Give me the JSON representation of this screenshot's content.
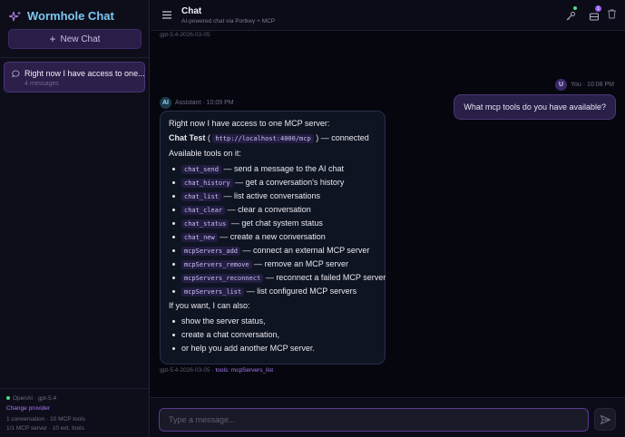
{
  "app": {
    "title": "Wormhole Chat",
    "new_chat": "New Chat"
  },
  "sidebar": {
    "conversations": [
      {
        "title": "Right now I have access to one...",
        "sub": "4 messages"
      }
    ],
    "footer": {
      "provider": "OpenAI · gpt-5.4",
      "change": "Change provider",
      "stats1": "1 conversation · 10 MCP tools",
      "stats2": "1/1 MCP server · 10 ext. tools"
    }
  },
  "header": {
    "title": "Chat",
    "subtitle": "AI-powered chat via Portkey + MCP",
    "badge_count": "1"
  },
  "messages": {
    "top_meta": "gpt-5.4-2026-03-05",
    "user": {
      "avatar": "U",
      "meta": "You · 10:08 PM",
      "text": "What mcp tools do you have available?"
    },
    "assistant": {
      "avatar": "AI",
      "meta": "Assistant · 10:09 PM",
      "intro": "Right now I have access to one MCP server:",
      "server_name": "Chat Test",
      "server_url": "http://localhost:4000/mcp",
      "server_status": ") — connected",
      "tools_heading": "Available tools on it:",
      "tools": [
        {
          "name": "chat_send",
          "desc": "— send a message to the AI chat"
        },
        {
          "name": "chat_history",
          "desc": "— get a conversation's history"
        },
        {
          "name": "chat_list",
          "desc": "— list active conversations"
        },
        {
          "name": "chat_clear",
          "desc": "— clear a conversation"
        },
        {
          "name": "chat_status",
          "desc": "— get chat system status"
        },
        {
          "name": "chat_new",
          "desc": "— create a new conversation"
        },
        {
          "name": "mcpServers_add",
          "desc": "— connect an external MCP server"
        },
        {
          "name": "mcpServers_remove",
          "desc": "— remove an MCP server"
        },
        {
          "name": "mcpServers_reconnect",
          "desc": "— reconnect a failed MCP server"
        },
        {
          "name": "mcpServers_list",
          "desc": "— list configured MCP servers"
        }
      ],
      "also_heading": "If you want, I can also:",
      "also": [
        "show the server status,",
        "create a chat conversation,",
        "or help you add another MCP server."
      ],
      "footer_model": "gpt-5.4-2026-03-05 · ",
      "footer_tools": "tools: mcpServers_list"
    }
  },
  "composer": {
    "placeholder": "Type a message..."
  },
  "colors": {
    "accent": "#7c4dcc",
    "brand": "#7cc8f2",
    "status_ok": "#4ade80"
  }
}
